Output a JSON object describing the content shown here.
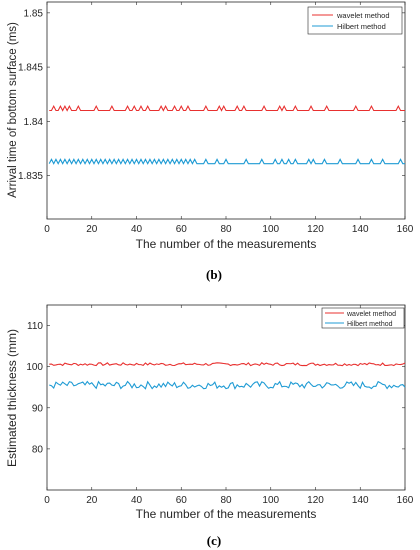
{
  "chart_data": [
    {
      "type": "line",
      "caption": "(b)",
      "xlabel": "The number of the measurements",
      "ylabel": "Arrival time of bottom surface (ms)",
      "xlim": [
        0,
        160
      ],
      "ylim": [
        1.831,
        1.851
      ],
      "x_ticks": [
        "0",
        "20",
        "40",
        "60",
        "80",
        "100",
        "120",
        "140",
        "160"
      ],
      "y_ticks": [
        "1.835",
        "1.84",
        "1.845",
        "1.85"
      ],
      "grid": false,
      "legend_position": "top-right",
      "series": [
        {
          "name": "wavelet method",
          "color": "#e8302f",
          "base": 1.841,
          "spike": 1.8414,
          "spikes_at": [
            3,
            6,
            8,
            10,
            14,
            22,
            29,
            36,
            39,
            42,
            45,
            51,
            53,
            57,
            60,
            63,
            71,
            77,
            79,
            85,
            88,
            97,
            104,
            106,
            111,
            118,
            125,
            138,
            145,
            157
          ]
        },
        {
          "name": "Hilbert method",
          "color": "#1f9bd4",
          "base": 1.8361,
          "spike": 1.8365,
          "dense_until": 66,
          "spikes_after": [
            71,
            76,
            80,
            89,
            96,
            102,
            105,
            108,
            111,
            117,
            119,
            124,
            131,
            139,
            145,
            150,
            158
          ]
        }
      ]
    },
    {
      "type": "line",
      "caption": "(c)",
      "xlabel": "The number of the measurements",
      "ylabel": "Estimated thickness (mm)",
      "xlim": [
        0,
        160
      ],
      "ylim": [
        70,
        115
      ],
      "x_ticks": [
        "0",
        "20",
        "40",
        "60",
        "80",
        "100",
        "120",
        "140",
        "160"
      ],
      "y_ticks": [
        "80",
        "90",
        "100",
        "110"
      ],
      "grid": false,
      "legend_position": "top-right",
      "series": [
        {
          "name": "wavelet method",
          "color": "#e8302f",
          "mean": 100.6,
          "amplitude": 0.35
        },
        {
          "name": "Hilbert method",
          "color": "#1f9bd4",
          "mean": 95.5,
          "amplitude": 0.9
        }
      ]
    }
  ]
}
